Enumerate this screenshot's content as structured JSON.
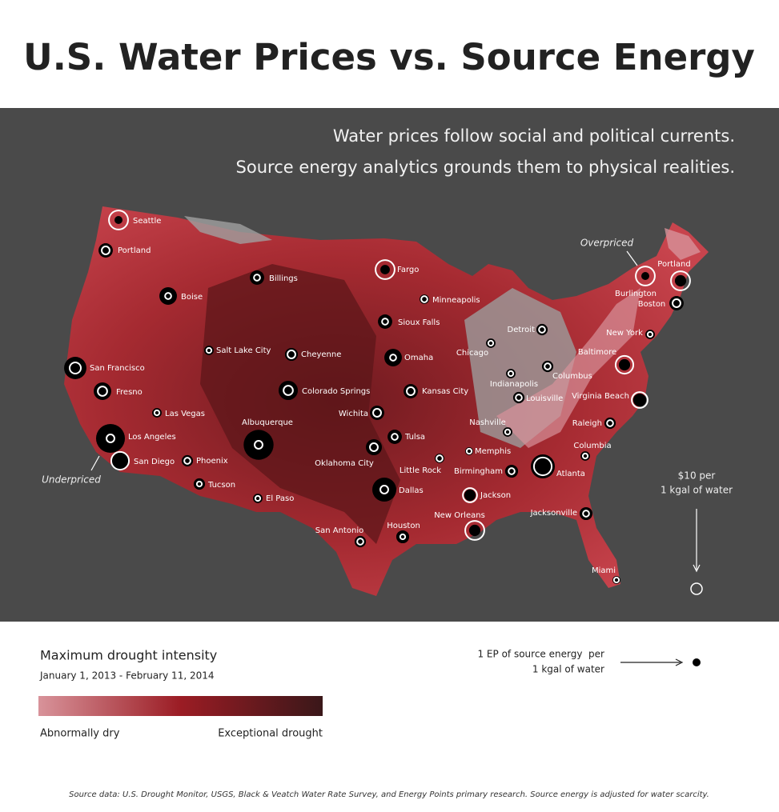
{
  "title": "U.S. Water Prices vs. Source Energy",
  "subtitle": [
    "Water prices follow social and political currents.",
    "Source energy analytics grounds them to physical realities."
  ],
  "map": {
    "annotations": {
      "overpriced": "Overpriced",
      "underpriced": "Underpriced"
    },
    "price_key": {
      "lines": [
        "$10 per",
        "1 kgal of water"
      ],
      "value": 10
    },
    "energy_key": {
      "lines": [
        "1 EP of source energy  per",
        "1 kgal of water"
      ],
      "value": 1
    },
    "cities": [
      {
        "name": "Seattle",
        "price": 29,
        "energy": 1.0
      },
      {
        "name": "Portland",
        "price": 5,
        "energy": 3.2
      },
      {
        "name": "Billings",
        "price": 3,
        "energy": 3.2
      },
      {
        "name": "Boise",
        "price": 3,
        "energy": 4.8
      },
      {
        "name": "Salt Lake City",
        "price": 2,
        "energy": 1.4
      },
      {
        "name": "Cheyenne",
        "price": 5,
        "energy": 2.6
      },
      {
        "name": "San Francisco",
        "price": 10,
        "energy": 7.8
      },
      {
        "name": "Fresno",
        "price": 7,
        "energy": 4.8
      },
      {
        "name": "Las Vegas",
        "price": 2,
        "energy": 1.4
      },
      {
        "name": "Los Angeles",
        "price": 5,
        "energy": 13
      },
      {
        "name": "San Diego",
        "price": 25,
        "energy": 4.8
      },
      {
        "name": "Phoenix",
        "price": 3,
        "energy": 2.0
      },
      {
        "name": "Tucson",
        "price": 2,
        "energy": 2.0
      },
      {
        "name": "Albuquerque",
        "price": 5,
        "energy": 14
      },
      {
        "name": "Colorado Springs",
        "price": 7,
        "energy": 5.8
      },
      {
        "name": "El Paso",
        "price": 2,
        "energy": 1.4
      },
      {
        "name": "Fargo",
        "price": 29,
        "energy": 1.4
      },
      {
        "name": "Minneapolis",
        "price": 3,
        "energy": 1.4
      },
      {
        "name": "Sioux Falls",
        "price": 3,
        "energy": 3.2
      },
      {
        "name": "Omaha",
        "price": 3,
        "energy": 4.8
      },
      {
        "name": "Wichita",
        "price": 5,
        "energy": 3.2
      },
      {
        "name": "Kansas City",
        "price": 5,
        "energy": 3.2
      },
      {
        "name": "Tulsa",
        "price": 3,
        "energy": 3.2
      },
      {
        "name": "Oklahoma City",
        "price": 5,
        "energy": 4.0
      },
      {
        "name": "Dallas",
        "price": 5,
        "energy": 9.0
      },
      {
        "name": "San Antonio",
        "price": 3,
        "energy": 2.0
      },
      {
        "name": "Houston",
        "price": 2,
        "energy": 2.6
      },
      {
        "name": "Little Rock",
        "price": 3,
        "energy": 1.4
      },
      {
        "name": "Memphis",
        "price": 2,
        "energy": 1.0
      },
      {
        "name": "Birmingham",
        "price": 3,
        "energy": 2.6
      },
      {
        "name": "Jackson",
        "price": 16,
        "energy": 2.0
      },
      {
        "name": "New Orleans",
        "price": 29,
        "energy": 2.0
      },
      {
        "name": "Atlanta",
        "price": 25,
        "energy": 9.0
      },
      {
        "name": "Jacksonville",
        "price": 3,
        "energy": 2.6
      },
      {
        "name": "Miami",
        "price": 2,
        "energy": 1.0
      },
      {
        "name": "Columbia",
        "price": 2,
        "energy": 1.4
      },
      {
        "name": "Raleigh",
        "price": 3,
        "energy": 2.0
      },
      {
        "name": "Nashville",
        "price": 2,
        "energy": 1.4
      },
      {
        "name": "Louisville",
        "price": 3,
        "energy": 2.0
      },
      {
        "name": "Indianapolis",
        "price": 2,
        "energy": 1.4
      },
      {
        "name": "Columbus",
        "price": 3,
        "energy": 2.0
      },
      {
        "name": "Chicago",
        "price": 2,
        "energy": 1.4
      },
      {
        "name": "Detroit",
        "price": 3,
        "energy": 2.0
      },
      {
        "name": "Virginia Beach",
        "price": 20,
        "energy": 2.6
      },
      {
        "name": "Baltimore",
        "price": 25,
        "energy": 2.0
      },
      {
        "name": "New York",
        "price": 2,
        "energy": 1.4
      },
      {
        "name": "Boston",
        "price": 5,
        "energy": 3.2
      },
      {
        "name": "Burlington",
        "price": 29,
        "energy": 1.0
      },
      {
        "name": "Portland",
        "price": 29,
        "energy": 2.0
      }
    ]
  },
  "legend": {
    "title": "Maximum drought intensity",
    "dates": "January 1, 2013 - February 11, 2014",
    "low": "Abnormally dry",
    "high": "Exceptional drought"
  },
  "source": "Source data: U.S. Drought Monitor, USGS, Black & Veatch Water Rate Survey, and Energy Points primary research. Source energy is adjusted for water scarcity."
}
